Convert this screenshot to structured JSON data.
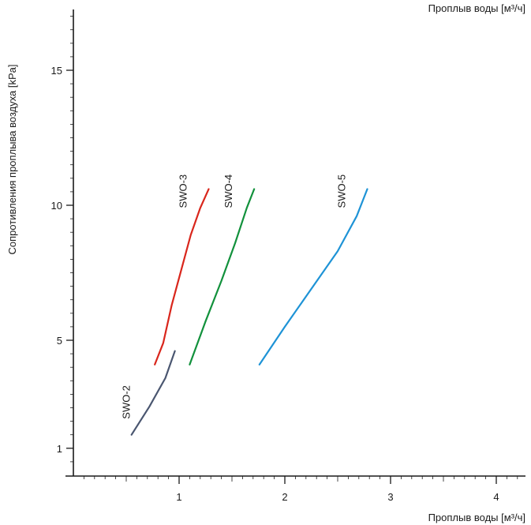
{
  "chart_data": {
    "type": "line",
    "title": "",
    "top_label": "Проплыв воды [м³/ч]",
    "xlabel": "Проплыв воды [м³/ч]",
    "ylabel": "Сопротивления проплыва воздуха [kPa]",
    "xlim": [
      -0.5,
      4.25
    ],
    "ylim": [
      0,
      17.5
    ],
    "x_ticks": [
      1,
      2,
      3,
      4
    ],
    "y_ticks": [
      1,
      5,
      10,
      15
    ],
    "grid": false,
    "series": [
      {
        "name": "SWO-2",
        "color": "#4a5670",
        "points": [
          [
            0.55,
            1.5
          ],
          [
            0.72,
            2.55
          ],
          [
            0.87,
            3.6
          ],
          [
            0.96,
            4.6
          ]
        ]
      },
      {
        "name": "SWO-3",
        "color": "#d9261c",
        "points": [
          [
            0.77,
            4.1
          ],
          [
            0.85,
            4.9
          ],
          [
            0.93,
            6.3
          ],
          [
            1.02,
            7.6
          ],
          [
            1.11,
            8.9
          ],
          [
            1.2,
            9.9
          ],
          [
            1.28,
            10.6
          ]
        ]
      },
      {
        "name": "SWO-4",
        "color": "#12913c",
        "points": [
          [
            1.1,
            4.1
          ],
          [
            1.25,
            5.7
          ],
          [
            1.4,
            7.2
          ],
          [
            1.53,
            8.6
          ],
          [
            1.64,
            9.9
          ],
          [
            1.71,
            10.6
          ]
        ]
      },
      {
        "name": "SWO-5",
        "color": "#1e93d6",
        "points": [
          [
            1.76,
            4.1
          ],
          [
            2.0,
            5.5
          ],
          [
            2.25,
            6.9
          ],
          [
            2.5,
            8.3
          ],
          [
            2.68,
            9.6
          ],
          [
            2.78,
            10.6
          ]
        ]
      }
    ]
  }
}
